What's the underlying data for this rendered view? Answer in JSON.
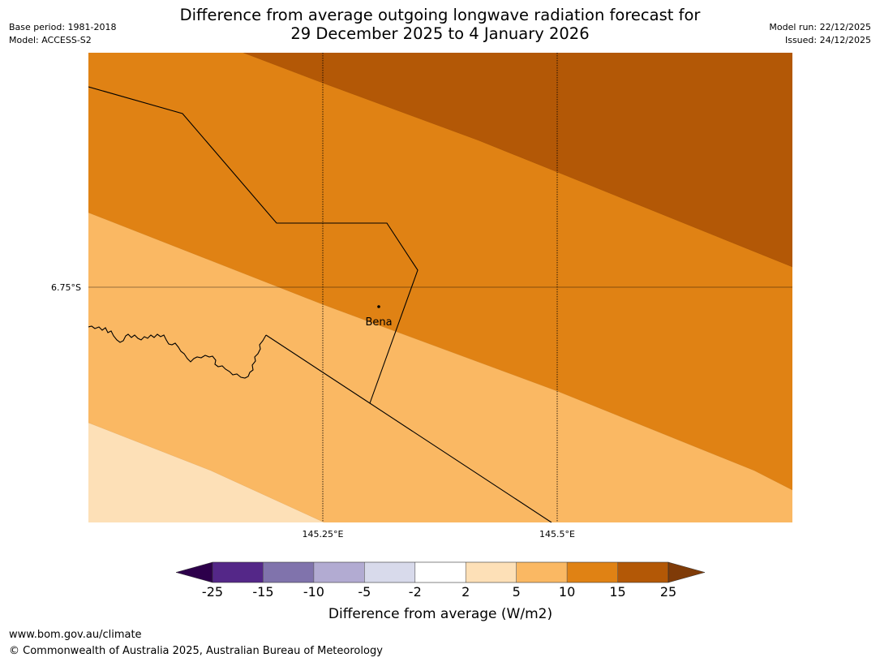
{
  "header": {
    "title_line1": "Difference from average outgoing longwave radiation forecast for",
    "title_line2": "29 December 2025 to 4 January 2026",
    "base_period": "Base period: 1981-2018",
    "model": "Model: ACCESS-S2",
    "model_run": "Model run: 22/12/2025",
    "issued": "Issued: 24/12/2025"
  },
  "map": {
    "lat_labels": [
      "6.75°S"
    ],
    "lon_labels": [
      "145.25°E",
      "145.5°E"
    ],
    "place": {
      "name": "Bena"
    },
    "fill_colors": {
      "band_2_5": "#fde0b7",
      "band_5_10": "#fab863",
      "band_10_15": "#e08214",
      "band_15_25": "#b35806"
    }
  },
  "colorbar": {
    "label": "Difference from average (W/m2)",
    "ticks": [
      "-25",
      "-15",
      "-10",
      "-5",
      "-2",
      "2",
      "5",
      "10",
      "15",
      "25"
    ],
    "colors": [
      "#542788",
      "#8073ac",
      "#b2abd2",
      "#d8daeb",
      "#ffffff",
      "#fde0b7",
      "#fab863",
      "#e08214",
      "#b35806"
    ],
    "under_color": "#2d004b",
    "over_color": "#7f3b08"
  },
  "footer": {
    "url": "www.bom.gov.au/climate",
    "copyright": "© Commonwealth of Australia 2025, Australian Bureau of Meteorology"
  }
}
